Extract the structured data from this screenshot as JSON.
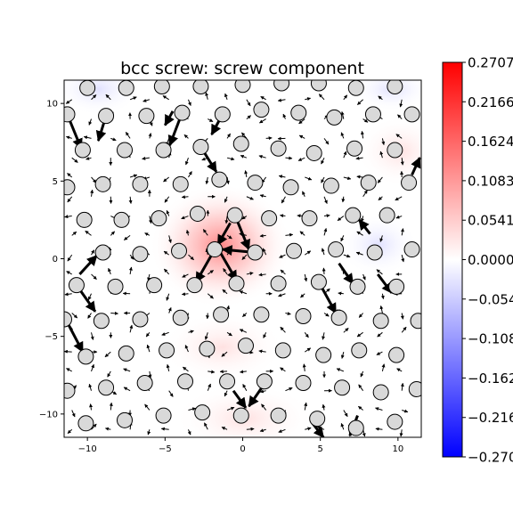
{
  "chart_data": {
    "type": "heatmap",
    "title": "bcc screw: screw component",
    "xlabel": "",
    "ylabel": "",
    "xlim": [
      -11.5,
      11.5
    ],
    "ylim": [
      -11.5,
      11.5
    ],
    "xticks": [
      -10,
      -5,
      0,
      5,
      10
    ],
    "yticks": [
      -10,
      -5,
      0,
      5,
      10
    ],
    "xtick_labels": [
      "−10",
      "−5",
      "0",
      "5",
      "10"
    ],
    "ytick_labels": [
      "−10",
      "−5",
      "0",
      "5",
      "10"
    ],
    "grid": false,
    "colormap": "bwr",
    "colorbar": {
      "min": -0.2707,
      "max": 0.2707,
      "ticks": [
        0.2707,
        0.2166,
        0.1624,
        0.1083,
        0.0541,
        0.0,
        -0.0541,
        -0.1083,
        -0.1624,
        -0.2166,
        -0.2707
      ],
      "tick_labels": [
        "0.2707",
        "0.2166",
        "0.1624",
        "0.1083",
        "0.0541",
        "0.0000",
        "−0.0541",
        "−0.1083",
        "−0.1624",
        "−0.2166",
        "−0.2707"
      ]
    },
    "colors": {
      "atom_fill": "#d9d9d9",
      "atom_edge": "#000000",
      "arrow": "#000000",
      "max_color": "#ff0000",
      "min_color": "#0000ff"
    },
    "atoms": [
      [
        -10.0,
        11.0
      ],
      [
        -7.5,
        11.0
      ],
      [
        -5.2,
        11.1
      ],
      [
        -2.7,
        11.1
      ],
      [
        0.0,
        11.2
      ],
      [
        2.5,
        11.3
      ],
      [
        4.9,
        11.3
      ],
      [
        7.3,
        11.0
      ],
      [
        9.8,
        11.1
      ],
      [
        -11.3,
        9.3
      ],
      [
        -8.8,
        9.2
      ],
      [
        -6.2,
        9.2
      ],
      [
        -3.9,
        9.4
      ],
      [
        -1.3,
        9.3
      ],
      [
        1.2,
        9.6
      ],
      [
        3.6,
        9.4
      ],
      [
        5.9,
        9.1
      ],
      [
        8.4,
        9.3
      ],
      [
        10.9,
        9.3
      ],
      [
        -10.3,
        7.0
      ],
      [
        -7.6,
        7.0
      ],
      [
        -5.1,
        7.0
      ],
      [
        -2.7,
        7.2
      ],
      [
        -0.1,
        7.4
      ],
      [
        2.3,
        7.1
      ],
      [
        4.6,
        6.8
      ],
      [
        7.2,
        7.1
      ],
      [
        9.8,
        7.0
      ],
      [
        -11.3,
        4.6
      ],
      [
        -9.0,
        4.8
      ],
      [
        -6.6,
        4.8
      ],
      [
        -4.0,
        4.8
      ],
      [
        -1.5,
        5.1
      ],
      [
        0.8,
        4.9
      ],
      [
        3.1,
        4.6
      ],
      [
        5.7,
        4.7
      ],
      [
        8.1,
        4.9
      ],
      [
        10.7,
        4.9
      ],
      [
        -10.2,
        2.5
      ],
      [
        -7.8,
        2.5
      ],
      [
        -5.4,
        2.6
      ],
      [
        -2.9,
        2.9
      ],
      [
        -0.5,
        2.8
      ],
      [
        1.7,
        2.6
      ],
      [
        4.3,
        2.6
      ],
      [
        7.1,
        2.8
      ],
      [
        9.3,
        2.8
      ],
      [
        -9.0,
        0.4
      ],
      [
        -6.6,
        0.3
      ],
      [
        -4.1,
        0.5
      ],
      [
        -1.8,
        0.6
      ],
      [
        0.8,
        0.4
      ],
      [
        3.3,
        0.5
      ],
      [
        6.0,
        0.6
      ],
      [
        8.5,
        0.4
      ],
      [
        10.9,
        0.6
      ],
      [
        -10.7,
        -1.7
      ],
      [
        -8.2,
        -1.8
      ],
      [
        -5.7,
        -1.7
      ],
      [
        -3.1,
        -1.7
      ],
      [
        -0.4,
        -1.6
      ],
      [
        2.3,
        -1.6
      ],
      [
        4.9,
        -1.5
      ],
      [
        7.4,
        -1.8
      ],
      [
        9.9,
        -1.8
      ],
      [
        -11.5,
        -3.9
      ],
      [
        -9.1,
        -4.0
      ],
      [
        -6.6,
        -3.9
      ],
      [
        -4.0,
        -3.8
      ],
      [
        -1.4,
        -3.6
      ],
      [
        1.2,
        -3.6
      ],
      [
        3.9,
        -3.7
      ],
      [
        6.2,
        -3.8
      ],
      [
        8.9,
        -4.0
      ],
      [
        11.3,
        -4.0
      ],
      [
        -10.1,
        -6.3
      ],
      [
        -7.5,
        -6.1
      ],
      [
        -4.9,
        -5.9
      ],
      [
        -2.3,
        -5.8
      ],
      [
        0.2,
        -5.6
      ],
      [
        2.6,
        -5.9
      ],
      [
        5.2,
        -6.2
      ],
      [
        7.5,
        -5.9
      ],
      [
        9.9,
        -6.2
      ],
      [
        -11.3,
        -8.5
      ],
      [
        -8.8,
        -8.3
      ],
      [
        -6.3,
        -8.0
      ],
      [
        -3.7,
        -7.9
      ],
      [
        -1.0,
        -7.9
      ],
      [
        1.4,
        -7.9
      ],
      [
        3.9,
        -8.0
      ],
      [
        6.4,
        -8.3
      ],
      [
        8.9,
        -8.6
      ],
      [
        11.2,
        -8.4
      ],
      [
        -10.1,
        -10.6
      ],
      [
        -7.6,
        -10.4
      ],
      [
        -5.1,
        -10.1
      ],
      [
        -2.6,
        -9.9
      ],
      [
        -0.1,
        -10.1
      ],
      [
        2.3,
        -10.1
      ],
      [
        4.8,
        -10.3
      ],
      [
        7.3,
        -10.9
      ],
      [
        9.8,
        -10.5
      ]
    ],
    "core_atoms": [
      [
        -1.8,
        0.6
      ],
      [
        0.8,
        0.4
      ],
      [
        -0.5,
        2.8
      ],
      [
        -3.1,
        -1.7
      ],
      [
        -0.4,
        -1.6
      ]
    ],
    "displacement_arrows": [
      [
        -11.3,
        9.3,
        -10.4,
        7.1
      ],
      [
        -8.8,
        9.2,
        -9.3,
        7.6
      ],
      [
        -3.9,
        9.4,
        -4.7,
        7.3
      ],
      [
        -1.3,
        9.3,
        -2.0,
        8.0
      ],
      [
        -2.7,
        7.2,
        -1.7,
        5.6
      ],
      [
        -0.5,
        2.8,
        0.4,
        0.6
      ],
      [
        0.8,
        0.4,
        -1.3,
        0.6
      ],
      [
        -1.8,
        0.6,
        -3.0,
        -1.5
      ],
      [
        -1.5,
        0.5,
        -0.4,
        -1.4
      ],
      [
        -0.8,
        2.3,
        -1.6,
        0.9
      ],
      [
        -10.5,
        -1.0,
        -9.4,
        0.2
      ],
      [
        -10.7,
        -1.7,
        -9.5,
        -3.4
      ],
      [
        -11.4,
        -3.9,
        -10.3,
        -6.0
      ],
      [
        -0.6,
        -8.5,
        0.2,
        -9.6
      ],
      [
        1.3,
        -8.2,
        0.4,
        -9.5
      ],
      [
        4.9,
        -1.5,
        6.0,
        -3.5
      ],
      [
        6.2,
        -0.3,
        7.1,
        -1.6
      ],
      [
        8.2,
        1.6,
        7.5,
        2.5
      ],
      [
        10.9,
        5.4,
        11.4,
        6.5
      ],
      [
        8.7,
        -1.0,
        9.6,
        -2.2
      ],
      [
        -4.5,
        9.5,
        -5.0,
        8.6
      ],
      [
        7.4,
        -10.1,
        6.9,
        -11.4
      ],
      [
        4.5,
        -10.6,
        5.2,
        -11.5
      ]
    ]
  }
}
